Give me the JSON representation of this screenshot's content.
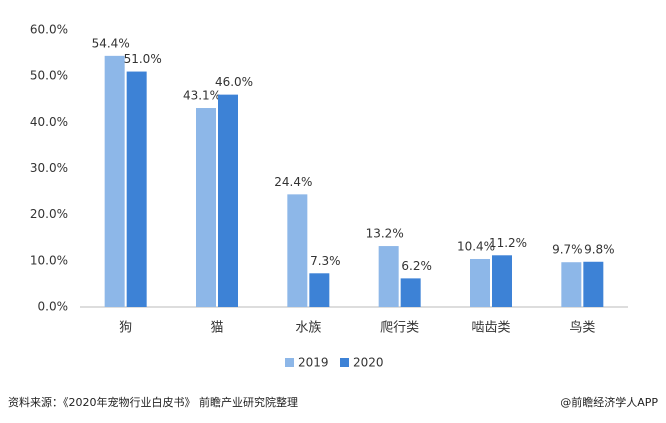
{
  "chart_data": {
    "type": "bar",
    "categories": [
      "狗",
      "猫",
      "水族",
      "爬行类",
      "啮齿类",
      "鸟类"
    ],
    "series": [
      {
        "name": "2019",
        "color": "#8db7e8",
        "values": [
          54.4,
          43.1,
          24.4,
          13.2,
          10.4,
          9.7
        ],
        "value_labels": [
          "54.4%",
          "43.1%",
          "24.4%",
          "13.2%",
          "10.4%",
          "9.7%"
        ]
      },
      {
        "name": "2020",
        "color": "#3d82d6",
        "values": [
          51.0,
          46.0,
          7.3,
          6.2,
          11.2,
          9.8
        ],
        "value_labels": [
          "51.0%",
          "46.0%",
          "7.3%",
          "6.2%",
          "11.2%",
          "9.8%"
        ]
      }
    ],
    "ylim": [
      0,
      60
    ],
    "yticks": [
      {
        "value": 0,
        "label": "0.0%"
      },
      {
        "value": 10,
        "label": "10.0%"
      },
      {
        "value": 20,
        "label": "20.0%"
      },
      {
        "value": 30,
        "label": "30.0%"
      },
      {
        "value": 40,
        "label": "40.0%"
      },
      {
        "value": 50,
        "label": "50.0%"
      },
      {
        "value": 60,
        "label": "60.0%"
      }
    ],
    "grid": false,
    "legend": "bottom",
    "source": "资料来源：《2020年宠物行业白皮书》 前瞻产业研究院整理",
    "credit": "@前瞻经济学人APP"
  }
}
